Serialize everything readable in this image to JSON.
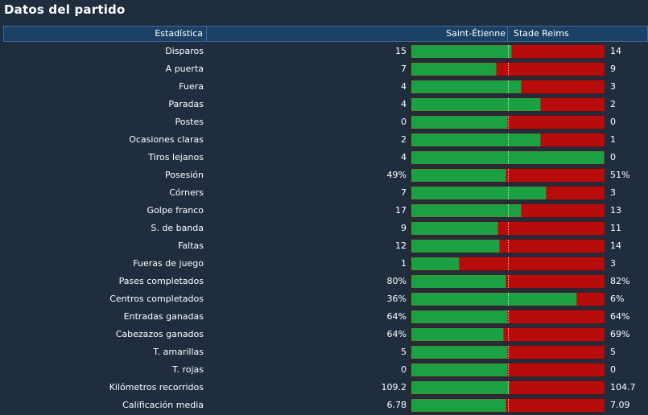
{
  "title": "Datos del partido",
  "header": {
    "stat": "Estadística",
    "home": "Saint-Étienne",
    "away": "Stade Reims"
  },
  "colors": {
    "home_bar": "#1ba144",
    "away_bar": "#b80b0b",
    "background": "#1f2d3f",
    "header": "#1b4266"
  },
  "stats": [
    {
      "label": "Disparos",
      "home": "15",
      "away": "14",
      "home_share": 0.52
    },
    {
      "label": "A puerta",
      "home": "7",
      "away": "9",
      "home_share": 0.44
    },
    {
      "label": "Fuera",
      "home": "4",
      "away": "3",
      "home_share": 0.57
    },
    {
      "label": "Paradas",
      "home": "4",
      "away": "2",
      "home_share": 0.67
    },
    {
      "label": "Postes",
      "home": "0",
      "away": "0",
      "home_share": 0.5
    },
    {
      "label": "Ocasiones claras",
      "home": "2",
      "away": "1",
      "home_share": 0.67
    },
    {
      "label": "Tiros lejanos",
      "home": "4",
      "away": "0",
      "home_share": 1.0
    },
    {
      "label": "Posesión",
      "home": "49%",
      "away": "51%",
      "home_share": 0.49
    },
    {
      "label": "Córners",
      "home": "7",
      "away": "3",
      "home_share": 0.7
    },
    {
      "label": "Golpe franco",
      "home": "17",
      "away": "13",
      "home_share": 0.57
    },
    {
      "label": "S. de banda",
      "home": "9",
      "away": "11",
      "home_share": 0.45
    },
    {
      "label": "Faltas",
      "home": "12",
      "away": "14",
      "home_share": 0.46
    },
    {
      "label": "Fueras de juego",
      "home": "1",
      "away": "3",
      "home_share": 0.25
    },
    {
      "label": "Pases completados",
      "home": "80%",
      "away": "82%",
      "home_share": 0.49
    },
    {
      "label": "Centros completados",
      "home": "36%",
      "away": "6%",
      "home_share": 0.86
    },
    {
      "label": "Entradas ganadas",
      "home": "64%",
      "away": "64%",
      "home_share": 0.5
    },
    {
      "label": "Cabezazos ganados",
      "home": "64%",
      "away": "69%",
      "home_share": 0.48
    },
    {
      "label": "T. amarillas",
      "home": "5",
      "away": "5",
      "home_share": 0.5
    },
    {
      "label": "T. rojas",
      "home": "0",
      "away": "0",
      "home_share": 0.5
    },
    {
      "label": "Kilómetros recorridos",
      "home": "109.2",
      "away": "104.7",
      "home_share": 0.51
    },
    {
      "label": "Calificación media",
      "home": "6.78",
      "away": "7.09",
      "home_share": 0.49
    }
  ]
}
